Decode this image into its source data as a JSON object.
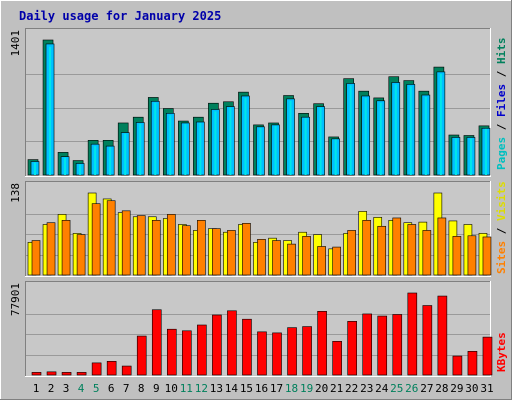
{
  "title": "Daily usage for January 2025",
  "colors": {
    "background": "#c0c0c0",
    "plot_bg": "#c8c8c8",
    "title_text": "#0000aa",
    "hits": "#00805c",
    "files": "#00c0ff",
    "pages": "#00e8e8",
    "visits": "#ffff00",
    "sites": "#ff8000",
    "kbytes": "#ff0000",
    "weekday_label": "#000000",
    "weekend_label": "#00805c"
  },
  "right_labels": {
    "panel1": [
      {
        "text": "Pages",
        "color": "#00c0c0"
      },
      {
        "text": " / ",
        "color": "#000000"
      },
      {
        "text": "Files",
        "color": "#0000cc"
      },
      {
        "text": " / ",
        "color": "#000000"
      },
      {
        "text": "Hits",
        "color": "#00805c"
      }
    ],
    "panel2": [
      {
        "text": "Sites",
        "color": "#ff8000"
      },
      {
        "text": " / ",
        "color": "#000000"
      },
      {
        "text": "Visits",
        "color": "#dddd00"
      }
    ],
    "panel3": [
      {
        "text": "KBytes",
        "color": "#ff0000"
      }
    ]
  },
  "chart_data": [
    {
      "type": "bar",
      "panel": "hits_files_pages",
      "categories": [
        "1",
        "2",
        "3",
        "4",
        "5",
        "6",
        "7",
        "8",
        "9",
        "10",
        "11",
        "12",
        "13",
        "14",
        "15",
        "16",
        "17",
        "18",
        "19",
        "20",
        "21",
        "22",
        "23",
        "24",
        "25",
        "26",
        "27",
        "28",
        "29",
        "30",
        "31"
      ],
      "weekend_days": [
        "4",
        "5",
        "11",
        "12",
        "18",
        "19",
        "25",
        "26"
      ],
      "ylabel_max": "1401",
      "ylim": [
        0,
        1401
      ],
      "series": [
        {
          "name": "Hits",
          "values": [
            160,
            1401,
            235,
            150,
            360,
            360,
            540,
            600,
            805,
            690,
            560,
            600,
            745,
            760,
            860,
            520,
            540,
            825,
            640,
            740,
            395,
            1000,
            870,
            800,
            1020,
            980,
            870,
            1120,
            415,
            410,
            510
          ]
        },
        {
          "name": "Files",
          "values": [
            140,
            1360,
            190,
            120,
            320,
            300,
            440,
            545,
            765,
            640,
            540,
            550,
            680,
            710,
            820,
            500,
            520,
            790,
            600,
            710,
            375,
            950,
            820,
            770,
            960,
            940,
            830,
            1070,
            390,
            390,
            485
          ]
        },
        {
          "name": "Pages",
          "values": [
            130,
            1330,
            180,
            110,
            300,
            290,
            430,
            530,
            750,
            620,
            530,
            540,
            660,
            700,
            800,
            490,
            510,
            770,
            590,
            700,
            370,
            930,
            800,
            750,
            940,
            920,
            810,
            1050,
            380,
            380,
            480
          ]
        }
      ]
    },
    {
      "type": "bar",
      "panel": "visits_sites",
      "categories": [
        "1",
        "2",
        "3",
        "4",
        "5",
        "6",
        "7",
        "8",
        "9",
        "10",
        "11",
        "12",
        "13",
        "14",
        "15",
        "16",
        "17",
        "18",
        "19",
        "20",
        "21",
        "22",
        "23",
        "24",
        "25",
        "26",
        "27",
        "28",
        "29",
        "30",
        "31"
      ],
      "ylabel_max": "138",
      "ylim": [
        0,
        138
      ],
      "series": [
        {
          "name": "Visits",
          "values": [
            55,
            85,
            102,
            70,
            138,
            128,
            105,
            98,
            98,
            95,
            85,
            75,
            78,
            72,
            85,
            55,
            62,
            58,
            72,
            68,
            44,
            70,
            107,
            97,
            92,
            88,
            89,
            138,
            91,
            85,
            70
          ]
        },
        {
          "name": "Sites",
          "values": [
            58,
            88,
            92,
            68,
            120,
            125,
            108,
            100,
            92,
            102,
            83,
            92,
            78,
            75,
            87,
            60,
            58,
            52,
            65,
            48,
            47,
            75,
            92,
            82,
            96,
            85,
            75,
            96,
            65,
            66,
            64
          ]
        }
      ]
    },
    {
      "type": "bar",
      "panel": "kbytes",
      "categories": [
        "1",
        "2",
        "3",
        "4",
        "5",
        "6",
        "7",
        "8",
        "9",
        "10",
        "11",
        "12",
        "13",
        "14",
        "15",
        "16",
        "17",
        "18",
        "19",
        "20",
        "21",
        "22",
        "23",
        "24",
        "25",
        "26",
        "27",
        "28",
        "29",
        "30",
        "31"
      ],
      "ylabel_max": "77901",
      "ylim": [
        0,
        77901
      ],
      "series": [
        {
          "name": "KBytes",
          "values": [
            2500,
            3000,
            2500,
            2500,
            11500,
            13000,
            8500,
            37000,
            62000,
            43500,
            42000,
            47500,
            57000,
            61000,
            53000,
            41000,
            40000,
            45000,
            46000,
            60500,
            32000,
            51000,
            58000,
            56000,
            57500,
            77901,
            66000,
            75000,
            18000,
            22500,
            36000
          ]
        }
      ]
    }
  ]
}
